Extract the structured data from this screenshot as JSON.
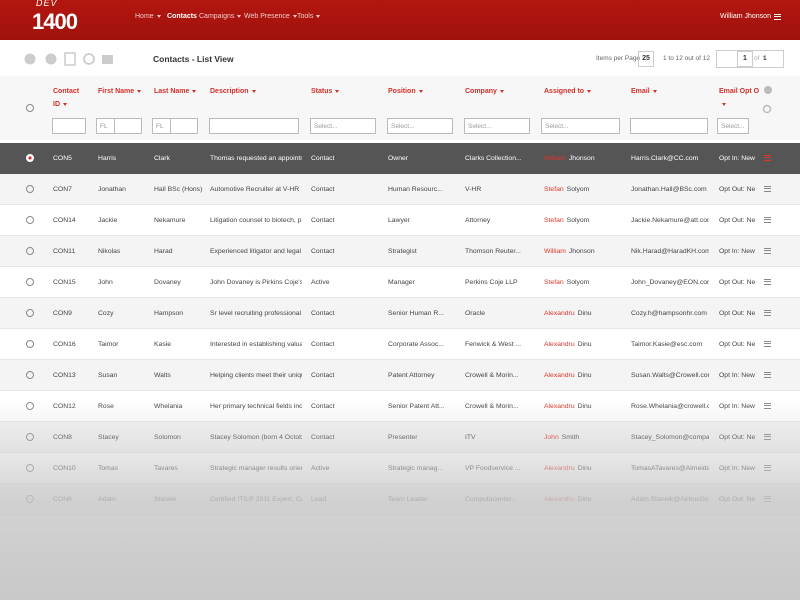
{
  "header": {
    "logo": {
      "small": "DEV",
      "big": "1400"
    },
    "nav": [
      "Home",
      "Contacts",
      "Campaigns",
      "Web Presence",
      "Tools"
    ],
    "active_nav": 1,
    "user": "William Jhonson"
  },
  "toolbar": {
    "title": "Contacts - List View",
    "items_label": "Items per Page",
    "items_value": "25",
    "range": "1 to 12 out of 12",
    "page": "1",
    "of": "of",
    "pages": "1"
  },
  "table": {
    "columns": [
      "Contact ID",
      "First Name",
      "Last Name",
      "Description",
      "Status",
      "Position",
      "Company",
      "Assigned to",
      "Email",
      "Email Opt O"
    ],
    "filters": [
      null,
      "FL",
      "FL",
      null,
      "Select...",
      "Select...",
      "Select...",
      "Select...",
      null,
      "Select..."
    ],
    "selected_row": 0,
    "rows": [
      [
        "CON5",
        "Harris",
        "Clark",
        "Thomas requested an appointme...",
        "Contact",
        "Owner",
        "Clarks Collection...",
        [
          "William",
          "Jhonson"
        ],
        "Harris.Clark@CC.com",
        "Opt In: New"
      ],
      [
        "CON7",
        "Jonathan",
        "Hall BSc (Hons)",
        "Automotive Recruiter at V-HR",
        "Contact",
        "Human Resourc...",
        "V-HR",
        [
          "Stefan",
          "Solyom"
        ],
        "Jonathan.Hall@BSc.com",
        "Opt Out: New"
      ],
      [
        "CON14",
        "Jackie",
        "Nekamure",
        "Litigation counsel to biotech, phar...",
        "Contact",
        "Lawyer",
        "Attorney",
        [
          "Stefan",
          "Solyom"
        ],
        "Jackie.Nekamure@att.com",
        "Opt Out: New"
      ],
      [
        "CON11",
        "Nikolas",
        "Harad",
        "Experienced litigator and legal kno...",
        "Contact",
        "Strategist",
        "Thomson Reuter...",
        [
          "William",
          "Jhonson"
        ],
        "Nik.Harad@HaradKH.com",
        "Opt In: New"
      ],
      [
        "CON15",
        "John",
        "Dovaney",
        "John Dovaney is Pirkins Coje's Ma...",
        "Active",
        "Manager",
        "Perkins Coje LLP",
        [
          "Stefan",
          "Solyom"
        ],
        "John_Dovaney@EON.com",
        "Opt Out: New"
      ],
      [
        "CON9",
        "Cozy",
        "Hampson",
        "Sr level recruiting professional wit...",
        "Contact",
        "Senior Human R...",
        "Oracle",
        [
          "Alexandru",
          "Dinu"
        ],
        "Cozy.h@hampsonhr.com",
        "Opt Out: New"
      ],
      [
        "CON16",
        "Taimor",
        "Kasie",
        "Interested in establishing valuable...",
        "Contact",
        "Corporate Assoc...",
        "Fenwick & West ...",
        [
          "Alexandru",
          "Dinu"
        ],
        "Taimor.Kasie@esc.com",
        "Opt Out: New"
      ],
      [
        "CON13",
        "Susan",
        "Walts",
        "Helping clients meet their unique ...",
        "Contact",
        "Patent Attorney",
        "Crowell & Morin...",
        [
          "Alexandru",
          "Dinu"
        ],
        "Susan.Walts@Crowell.com",
        "Opt In: New"
      ],
      [
        "CON12",
        "Rose",
        "Whelania",
        "Her primary technical fields includ...",
        "Contact",
        "Senior Patent Att...",
        "Crowell & Morin...",
        [
          "Alexandru",
          "Dinu"
        ],
        "Rose.Whelania@crowell.com",
        "Opt In: New"
      ],
      [
        "CON8",
        "Stacey",
        "Solomon",
        "Stacey Solomon (born 4 October ...",
        "Contact",
        "Presenter",
        "ITV",
        [
          "John",
          "Smith"
        ],
        "Stacey_Solomon@company|...",
        "Opt Out: New"
      ],
      [
        "CON10",
        "Tomas",
        "Tavares",
        "Strategic manager results oriente...",
        "Active",
        "Strategic manag...",
        "VP Foodservice ...",
        [
          "Alexandru",
          "Dinu"
        ],
        "TomasATavares@Almeida.c...",
        "Opt In: New"
      ],
      [
        "CON6",
        "Adam",
        "Staniek",
        "Certified ITIL® 2011 Expert, Certifi...",
        "Lead",
        "Team Leader",
        "Computacenter...",
        [
          "Alexandru",
          "Dinu"
        ],
        "Adam.Staniek@AirbusGroup...",
        "Opt Out: New"
      ]
    ]
  }
}
